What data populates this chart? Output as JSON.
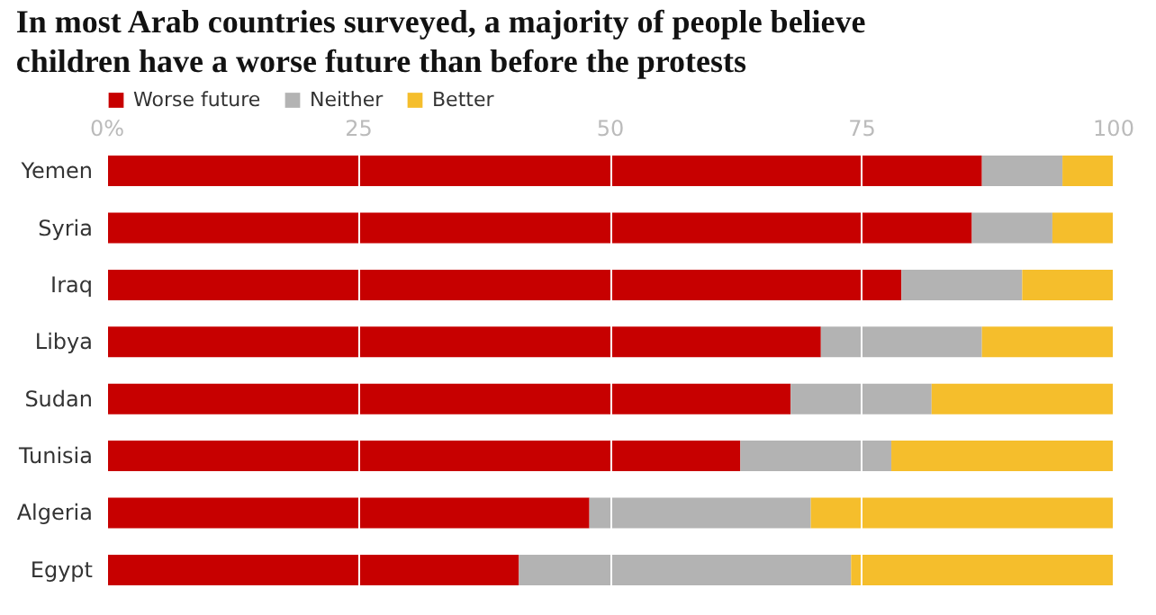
{
  "chart_data": {
    "type": "bar",
    "orientation": "horizontal",
    "stacked": true,
    "title": "In most Arab countries surveyed, a majority of people believe children have a worse future than before the protests",
    "categories": [
      "Yemen",
      "Syria",
      "Iraq",
      "Libya",
      "Sudan",
      "Tunisia",
      "Algeria",
      "Egypt"
    ],
    "series": [
      {
        "name": "Worse future",
        "color": "#c70000",
        "values": [
          87,
          86,
          79,
          71,
          68,
          63,
          48,
          41
        ]
      },
      {
        "name": "Neither",
        "color": "#b3b3b3",
        "values": [
          8,
          8,
          12,
          16,
          14,
          15,
          22,
          33
        ]
      },
      {
        "name": "Better",
        "color": "#f5be2c",
        "values": [
          5,
          6,
          9,
          13,
          18,
          22,
          30,
          26
        ]
      }
    ],
    "xlim": [
      0,
      100
    ],
    "xticks": [
      {
        "value": 0,
        "label": "0%"
      },
      25,
      50,
      75,
      100
    ],
    "grid": "x",
    "legend": "top left"
  }
}
